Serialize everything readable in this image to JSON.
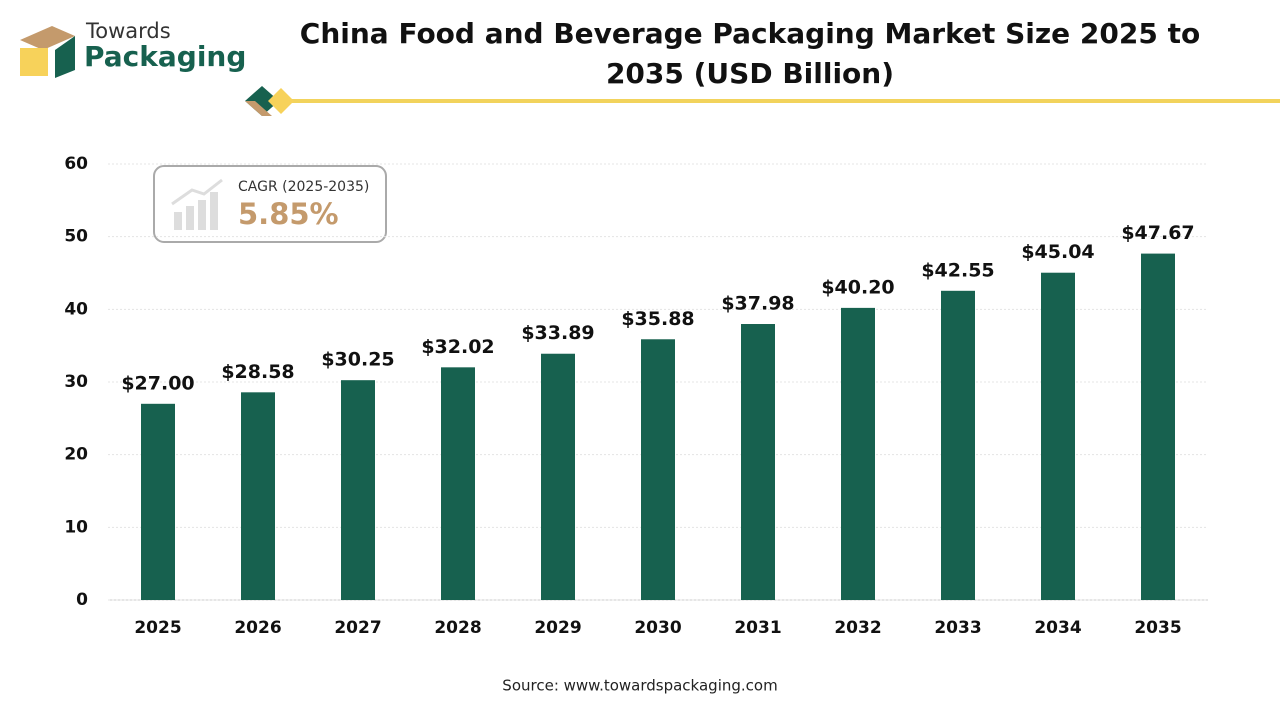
{
  "brand": {
    "line1": "Towards",
    "line2": "Packaging"
  },
  "chart_data": {
    "type": "bar",
    "title": "China Food and Beverage Packaging Market Size 2025 to 2035 (USD Billion)",
    "categories": [
      "2025",
      "2026",
      "2027",
      "2028",
      "2029",
      "2030",
      "2031",
      "2032",
      "2033",
      "2034",
      "2035"
    ],
    "values": [
      27.0,
      28.58,
      30.25,
      32.02,
      33.89,
      35.88,
      37.98,
      40.2,
      42.55,
      45.04,
      47.67
    ],
    "value_labels": [
      "$27.00",
      "$28.58",
      "$30.25",
      "$32.02",
      "$33.89",
      "$35.88",
      "$37.98",
      "$40.20",
      "$42.55",
      "$45.04",
      "$47.67"
    ],
    "color": "#17614f",
    "ylim": [
      0,
      60
    ],
    "yticks": [
      0,
      10,
      20,
      30,
      40,
      50,
      60
    ],
    "grid": true,
    "cagr": {
      "label": "CAGR (2025-2035)",
      "value": "5.85%"
    },
    "source": "Source: www.towardspackaging.com"
  }
}
